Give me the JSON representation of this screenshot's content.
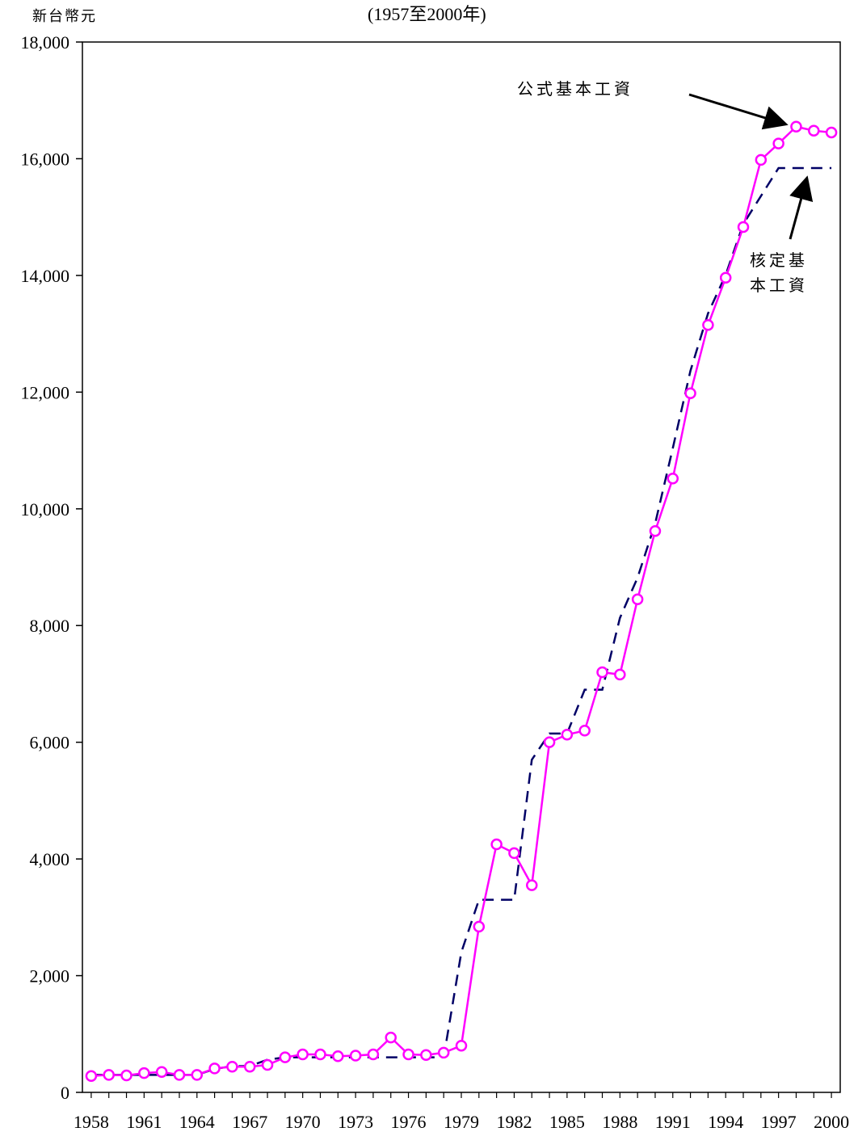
{
  "unit_label": "新台幣元",
  "subtitle": "(1957至2000年)",
  "annotations": {
    "formula_label": "公式基本工資",
    "approved_label_line1": "核定基",
    "approved_label_line2": "本工資"
  },
  "colors": {
    "formula_series": "#ff00ff",
    "approved_series": "#000066",
    "axis": "#000000"
  },
  "chart_data": {
    "type": "line",
    "x": [
      1958,
      1959,
      1960,
      1961,
      1962,
      1963,
      1964,
      1965,
      1966,
      1967,
      1968,
      1969,
      1970,
      1971,
      1972,
      1973,
      1974,
      1975,
      1976,
      1977,
      1978,
      1979,
      1980,
      1981,
      1982,
      1983,
      1984,
      1985,
      1986,
      1987,
      1988,
      1989,
      1990,
      1991,
      1992,
      1993,
      1994,
      1995,
      1996,
      1997,
      1998,
      1999,
      2000
    ],
    "x_tick_labels": [
      "1958",
      "1961",
      "1964",
      "1967",
      "1970",
      "1973",
      "1976",
      "1979",
      "1982",
      "1985",
      "1988",
      "1991",
      "1994",
      "1997",
      "2000"
    ],
    "y_tick_labels": [
      "0",
      "2,000",
      "4,000",
      "6,000",
      "8,000",
      "10,000",
      "12,000",
      "14,000",
      "16,000",
      "18,000"
    ],
    "ylim": [
      0,
      18000
    ],
    "xlim": [
      1957.5,
      2000.5
    ],
    "series": [
      {
        "name": "公式基本工資",
        "style": "solid line with circle markers",
        "values": [
          280,
          300,
          290,
          330,
          350,
          300,
          300,
          410,
          440,
          440,
          470,
          600,
          650,
          650,
          620,
          630,
          650,
          940,
          650,
          640,
          680,
          800,
          2840,
          4250,
          4100,
          3550,
          6000,
          6130,
          6200,
          7200,
          7160,
          8450,
          9620,
          10520,
          11980,
          13150,
          13960,
          14830,
          15980,
          16260,
          16550,
          16480,
          16450
        ]
      },
      {
        "name": "核定基本工資",
        "style": "dashed line",
        "values": [
          300,
          300,
          300,
          300,
          300,
          300,
          300,
          400,
          450,
          450,
          560,
          600,
          600,
          600,
          600,
          600,
          600,
          600,
          600,
          600,
          600,
          2400,
          3300,
          3300,
          3300,
          5700,
          6150,
          6150,
          6900,
          6900,
          8130,
          8820,
          9750,
          11040,
          12365,
          13350,
          14010,
          14880,
          15360,
          15840,
          15840,
          15840,
          15840
        ]
      }
    ],
    "grid": false,
    "legend": "none (inline annotations with arrows)"
  }
}
